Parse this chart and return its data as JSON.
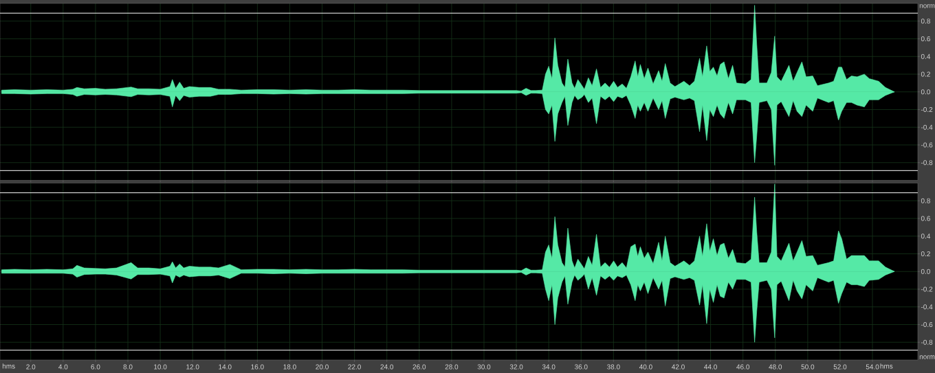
{
  "chart_data": [
    {
      "type": "area",
      "ylabel": "norm",
      "tick_labels": "y",
      "grid": true,
      "xlim": [
        0.1,
        56.8
      ],
      "ylim": [
        -1,
        1
      ],
      "xticks": [
        {
          "value": 2,
          "label": null
        },
        {
          "value": 4,
          "label": null
        },
        {
          "value": 6,
          "label": null
        },
        {
          "value": 8,
          "label": null
        },
        {
          "value": 10,
          "label": null
        },
        {
          "value": 12,
          "label": null
        },
        {
          "value": 14,
          "label": null
        },
        {
          "value": 16,
          "label": null
        },
        {
          "value": 18,
          "label": null
        },
        {
          "value": 20,
          "label": null
        },
        {
          "value": 22,
          "label": null
        },
        {
          "value": 24,
          "label": null
        },
        {
          "value": 26,
          "label": null
        },
        {
          "value": 28,
          "label": null
        },
        {
          "value": 30,
          "label": null
        },
        {
          "value": 32,
          "label": null
        },
        {
          "value": 34,
          "label": null
        },
        {
          "value": 36,
          "label": null
        },
        {
          "value": 38,
          "label": null
        },
        {
          "value": 40,
          "label": null
        },
        {
          "value": 42,
          "label": null
        },
        {
          "value": 44,
          "label": null
        },
        {
          "value": 46,
          "label": null
        },
        {
          "value": 48,
          "label": null
        },
        {
          "value": 50,
          "label": null
        },
        {
          "value": 52,
          "label": null
        },
        {
          "value": 54,
          "label": null
        }
      ],
      "yticks": [
        -0.8,
        -0.6,
        -0.4,
        -0.2,
        {
          "value": 0,
          "label": "0.0"
        },
        0.2,
        0.4,
        0.6,
        0.8
      ],
      "ref_lines": [
        {
          "axis": "y",
          "value": 0.89,
          "color": "#ffffff"
        },
        {
          "axis": "y",
          "value": -0.89,
          "color": "#ffffff"
        }
      ],
      "x": [
        0.2,
        1,
        2,
        3,
        4,
        4.6,
        4.85,
        5.3,
        6,
        6.6,
        7.3,
        8.2,
        8.6,
        9.3,
        10,
        10.6,
        10.75,
        10.95,
        11.2,
        11.45,
        11.8,
        12.4,
        13.1,
        13.6,
        14.3,
        15,
        16,
        17,
        18,
        19,
        20,
        21,
        22,
        23,
        24,
        25,
        26,
        27,
        28,
        29,
        30,
        31,
        32,
        32.3,
        32.6,
        32.9,
        33.2,
        33.6,
        33.8,
        34.0,
        34.2,
        34.38,
        34.56,
        34.82,
        35.0,
        35.18,
        35.44,
        35.6,
        35.8,
        36.06,
        36.2,
        36.45,
        36.68,
        36.95,
        37.2,
        37.48,
        37.75,
        38.01,
        38.25,
        38.54,
        38.8,
        39.07,
        39.34,
        39.5,
        39.66,
        39.9,
        40.13,
        40.45,
        40.79,
        41.0,
        41.2,
        41.5,
        41.8,
        42.35,
        42.7,
        43.0,
        43.32,
        43.5,
        43.76,
        43.95,
        44.17,
        44.4,
        44.6,
        44.83,
        45.1,
        45.36,
        45.6,
        46.15,
        46.5,
        46.72,
        46.85,
        47.0,
        47.48,
        47.75,
        47.96,
        48.1,
        48.36,
        48.84,
        49.1,
        49.34,
        49.64,
        49.9,
        50.31,
        50.6,
        51.29,
        51.6,
        51.9,
        52.1,
        52.4,
        52.7,
        53.05,
        53.5,
        53.8,
        54.38,
        54.8,
        55.36
      ],
      "series": [
        {
          "color": "#55e9a6",
          "values": [
            0.02,
            0.025,
            0.02,
            0.025,
            0.02,
            0.03,
            0.05,
            0.035,
            0.04,
            0.03,
            0.035,
            0.055,
            0.035,
            0.035,
            0.03,
            0.06,
            0.14,
            0.04,
            0.11,
            0.04,
            0.06,
            0.05,
            0.05,
            0.03,
            0.03,
            0.02,
            0.025,
            0.025,
            0.02,
            0.025,
            0.02,
            0.02,
            0.025,
            0.02,
            0.02,
            0.02,
            0.015,
            0.015,
            0.015,
            0.015,
            0.015,
            0.015,
            0.015,
            0.01,
            0.04,
            0.015,
            0.015,
            0.02,
            0.2,
            0.29,
            0.15,
            0.61,
            0.3,
            0.1,
            0.05,
            0.37,
            0.1,
            0.04,
            0.14,
            0.07,
            0.03,
            0.16,
            0.07,
            0.26,
            0.05,
            0.1,
            0.05,
            0.12,
            0.05,
            0.09,
            0.04,
            0.17,
            0.35,
            0.17,
            0.31,
            0.15,
            0.27,
            0.09,
            0.24,
            0.12,
            0.32,
            0.1,
            0.06,
            0.12,
            0.07,
            0.12,
            0.38,
            0.17,
            0.52,
            0.23,
            0.28,
            0.18,
            0.31,
            0.34,
            0.15,
            0.3,
            0.1,
            0.09,
            0.14,
            0.98,
            0.54,
            0.1,
            0.1,
            0.22,
            0.63,
            0.17,
            0.12,
            0.3,
            0.12,
            0.22,
            0.34,
            0.17,
            0.18,
            0.07,
            0.1,
            0.12,
            0.28,
            0.28,
            0.14,
            0.18,
            0.17,
            0.2,
            0.15,
            0.12,
            0.05,
            0
          ]
        },
        {
          "color": "#55e9a6",
          "values": [
            -0.02,
            -0.02,
            -0.025,
            -0.02,
            -0.02,
            -0.03,
            -0.05,
            -0.03,
            -0.035,
            -0.03,
            -0.035,
            -0.055,
            -0.03,
            -0.035,
            -0.03,
            -0.05,
            -0.17,
            -0.04,
            -0.1,
            -0.04,
            -0.06,
            -0.05,
            -0.05,
            -0.03,
            -0.03,
            -0.02,
            -0.02,
            -0.025,
            -0.02,
            -0.025,
            -0.02,
            -0.02,
            -0.02,
            -0.02,
            -0.02,
            -0.02,
            -0.015,
            -0.015,
            -0.015,
            -0.015,
            -0.015,
            -0.015,
            -0.015,
            -0.01,
            -0.04,
            -0.015,
            -0.015,
            -0.02,
            -0.2,
            -0.25,
            -0.15,
            -0.56,
            -0.25,
            -0.12,
            -0.05,
            -0.38,
            -0.12,
            -0.04,
            -0.09,
            -0.06,
            -0.03,
            -0.12,
            -0.07,
            -0.36,
            -0.05,
            -0.09,
            -0.05,
            -0.11,
            -0.05,
            -0.07,
            -0.04,
            -0.15,
            -0.3,
            -0.15,
            -0.22,
            -0.12,
            -0.22,
            -0.07,
            -0.2,
            -0.1,
            -0.3,
            -0.08,
            -0.06,
            -0.09,
            -0.07,
            -0.1,
            -0.45,
            -0.15,
            -0.55,
            -0.2,
            -0.28,
            -0.15,
            -0.25,
            -0.3,
            -0.12,
            -0.25,
            -0.09,
            -0.09,
            -0.12,
            -0.8,
            -0.5,
            -0.12,
            -0.1,
            -0.2,
            -0.83,
            -0.15,
            -0.11,
            -0.28,
            -0.1,
            -0.22,
            -0.28,
            -0.15,
            -0.22,
            -0.07,
            -0.12,
            -0.1,
            -0.32,
            -0.22,
            -0.12,
            -0.12,
            -0.15,
            -0.17,
            -0.09,
            -0.09,
            -0.04,
            0
          ]
        }
      ]
    },
    {
      "type": "area",
      "ylabel": "norm",
      "xlabel": "hms",
      "annotations": [
        "hms"
      ],
      "grid": true,
      "xlim": [
        0.1,
        56.8
      ],
      "ylim": [
        -1,
        1
      ],
      "xticks": [
        {
          "value": 2,
          "label": "2.0"
        },
        {
          "value": 4,
          "label": "4.0"
        },
        {
          "value": 6,
          "label": "6.0"
        },
        {
          "value": 8,
          "label": "8.0"
        },
        {
          "value": 10,
          "label": "10.0"
        },
        {
          "value": 12,
          "label": "12.0"
        },
        {
          "value": 14,
          "label": "14.0"
        },
        {
          "value": 16,
          "label": "16.0"
        },
        {
          "value": 18,
          "label": "18.0"
        },
        {
          "value": 20,
          "label": "20.0"
        },
        {
          "value": 22,
          "label": "22.0"
        },
        {
          "value": 24,
          "label": "24.0"
        },
        {
          "value": 26,
          "label": "26.0"
        },
        {
          "value": 28,
          "label": "28.0"
        },
        {
          "value": 30,
          "label": "30.0"
        },
        {
          "value": 32,
          "label": "32.0"
        },
        {
          "value": 34,
          "label": "34.0"
        },
        {
          "value": 36,
          "label": "36.0"
        },
        {
          "value": 38,
          "label": "38.0"
        },
        {
          "value": 40,
          "label": "40.0"
        },
        {
          "value": 42,
          "label": "42.0"
        },
        {
          "value": 44,
          "label": "44.0"
        },
        {
          "value": 46,
          "label": "46.0"
        },
        {
          "value": 48,
          "label": "48.0"
        },
        {
          "value": 50,
          "label": "50.0"
        },
        {
          "value": 52,
          "label": "52.0"
        },
        {
          "value": 54,
          "label": "54.0"
        }
      ],
      "yticks": [
        -0.8,
        -0.6,
        -0.4,
        -0.2,
        {
          "value": 0,
          "label": "0.0"
        },
        0.2,
        0.4,
        0.6,
        0.8
      ],
      "ref_lines": [
        {
          "axis": "y",
          "value": 0.89,
          "color": "#ffffff"
        },
        {
          "axis": "y",
          "value": -0.89,
          "color": "#ffffff"
        }
      ],
      "x": [
        0.2,
        1,
        2,
        3,
        4,
        4.6,
        4.85,
        5.3,
        6,
        6.6,
        7.3,
        8.2,
        8.6,
        9.3,
        10,
        10.6,
        10.75,
        10.95,
        11.2,
        11.45,
        11.8,
        12.4,
        13.1,
        13.6,
        14.3,
        15,
        16,
        17,
        18,
        19,
        20,
        21,
        22,
        23,
        24,
        25,
        26,
        27,
        28,
        29,
        30,
        31,
        32,
        32.3,
        32.6,
        32.9,
        33.2,
        33.6,
        33.8,
        34.0,
        34.2,
        34.38,
        34.56,
        34.82,
        35.0,
        35.18,
        35.44,
        35.6,
        35.8,
        36.06,
        36.2,
        36.45,
        36.68,
        36.95,
        37.2,
        37.48,
        37.75,
        38.01,
        38.25,
        38.54,
        38.8,
        39.07,
        39.34,
        39.5,
        39.66,
        39.9,
        40.13,
        40.45,
        40.79,
        41.0,
        41.2,
        41.5,
        41.8,
        42.35,
        42.7,
        43.0,
        43.32,
        43.5,
        43.76,
        43.95,
        44.17,
        44.4,
        44.6,
        44.83,
        45.1,
        45.36,
        45.6,
        46.15,
        46.5,
        46.72,
        46.85,
        47.0,
        47.48,
        47.75,
        47.96,
        48.1,
        48.36,
        48.84,
        49.1,
        49.34,
        49.64,
        49.9,
        50.31,
        50.6,
        51.29,
        51.6,
        51.9,
        52.1,
        52.4,
        52.7,
        53.05,
        53.5,
        53.8,
        54.38,
        54.8,
        55.36
      ],
      "series": [
        {
          "color": "#55e9a6",
          "values": [
            0.02,
            0.025,
            0.02,
            0.025,
            0.02,
            0.03,
            0.07,
            0.04,
            0.035,
            0.03,
            0.04,
            0.1,
            0.04,
            0.04,
            0.03,
            0.06,
            0.11,
            0.04,
            0.085,
            0.04,
            0.06,
            0.05,
            0.05,
            0.04,
            0.08,
            0.02,
            0.025,
            0.025,
            0.02,
            0.025,
            0.02,
            0.02,
            0.025,
            0.02,
            0.02,
            0.02,
            0.015,
            0.015,
            0.015,
            0.015,
            0.015,
            0.015,
            0.015,
            0.01,
            0.04,
            0.015,
            0.015,
            0.02,
            0.22,
            0.3,
            0.15,
            0.62,
            0.3,
            0.1,
            0.05,
            0.49,
            0.12,
            0.04,
            0.14,
            0.07,
            0.03,
            0.17,
            0.07,
            0.42,
            0.05,
            0.1,
            0.05,
            0.12,
            0.05,
            0.1,
            0.04,
            0.28,
            0.31,
            0.17,
            0.28,
            0.15,
            0.22,
            0.09,
            0.33,
            0.12,
            0.4,
            0.1,
            0.06,
            0.12,
            0.07,
            0.12,
            0.4,
            0.17,
            0.54,
            0.23,
            0.37,
            0.18,
            0.3,
            0.32,
            0.15,
            0.25,
            0.1,
            0.09,
            0.14,
            0.84,
            0.45,
            0.1,
            0.1,
            0.22,
            0.99,
            0.17,
            0.12,
            0.32,
            0.12,
            0.22,
            0.35,
            0.17,
            0.18,
            0.07,
            0.1,
            0.12,
            0.46,
            0.37,
            0.14,
            0.18,
            0.18,
            0.18,
            0.12,
            0.12,
            0.05,
            0
          ]
        },
        {
          "color": "#55e9a6",
          "values": [
            -0.02,
            -0.02,
            -0.02,
            -0.02,
            -0.02,
            -0.03,
            -0.065,
            -0.035,
            -0.03,
            -0.03,
            -0.04,
            -0.085,
            -0.035,
            -0.035,
            -0.03,
            -0.05,
            -0.13,
            -0.04,
            -0.065,
            -0.04,
            -0.06,
            -0.05,
            -0.05,
            -0.04,
            -0.08,
            -0.02,
            -0.02,
            -0.025,
            -0.02,
            -0.025,
            -0.02,
            -0.02,
            -0.02,
            -0.02,
            -0.02,
            -0.02,
            -0.015,
            -0.015,
            -0.015,
            -0.015,
            -0.015,
            -0.015,
            -0.015,
            -0.01,
            -0.04,
            -0.015,
            -0.015,
            -0.02,
            -0.2,
            -0.33,
            -0.15,
            -0.6,
            -0.3,
            -0.12,
            -0.05,
            -0.37,
            -0.12,
            -0.04,
            -0.1,
            -0.06,
            -0.03,
            -0.2,
            -0.07,
            -0.27,
            -0.05,
            -0.09,
            -0.05,
            -0.1,
            -0.05,
            -0.07,
            -0.04,
            -0.15,
            -0.33,
            -0.15,
            -0.22,
            -0.12,
            -0.25,
            -0.07,
            -0.2,
            -0.1,
            -0.39,
            -0.08,
            -0.06,
            -0.09,
            -0.07,
            -0.1,
            -0.38,
            -0.15,
            -0.59,
            -0.2,
            -0.35,
            -0.15,
            -0.28,
            -0.3,
            -0.12,
            -0.2,
            -0.09,
            -0.09,
            -0.12,
            -0.8,
            -0.45,
            -0.12,
            -0.1,
            -0.2,
            -0.75,
            -0.15,
            -0.11,
            -0.33,
            -0.1,
            -0.22,
            -0.31,
            -0.15,
            -0.22,
            -0.07,
            -0.12,
            -0.1,
            -0.36,
            -0.25,
            -0.12,
            -0.15,
            -0.15,
            -0.17,
            -0.1,
            -0.09,
            -0.04,
            0
          ]
        }
      ]
    }
  ]
}
